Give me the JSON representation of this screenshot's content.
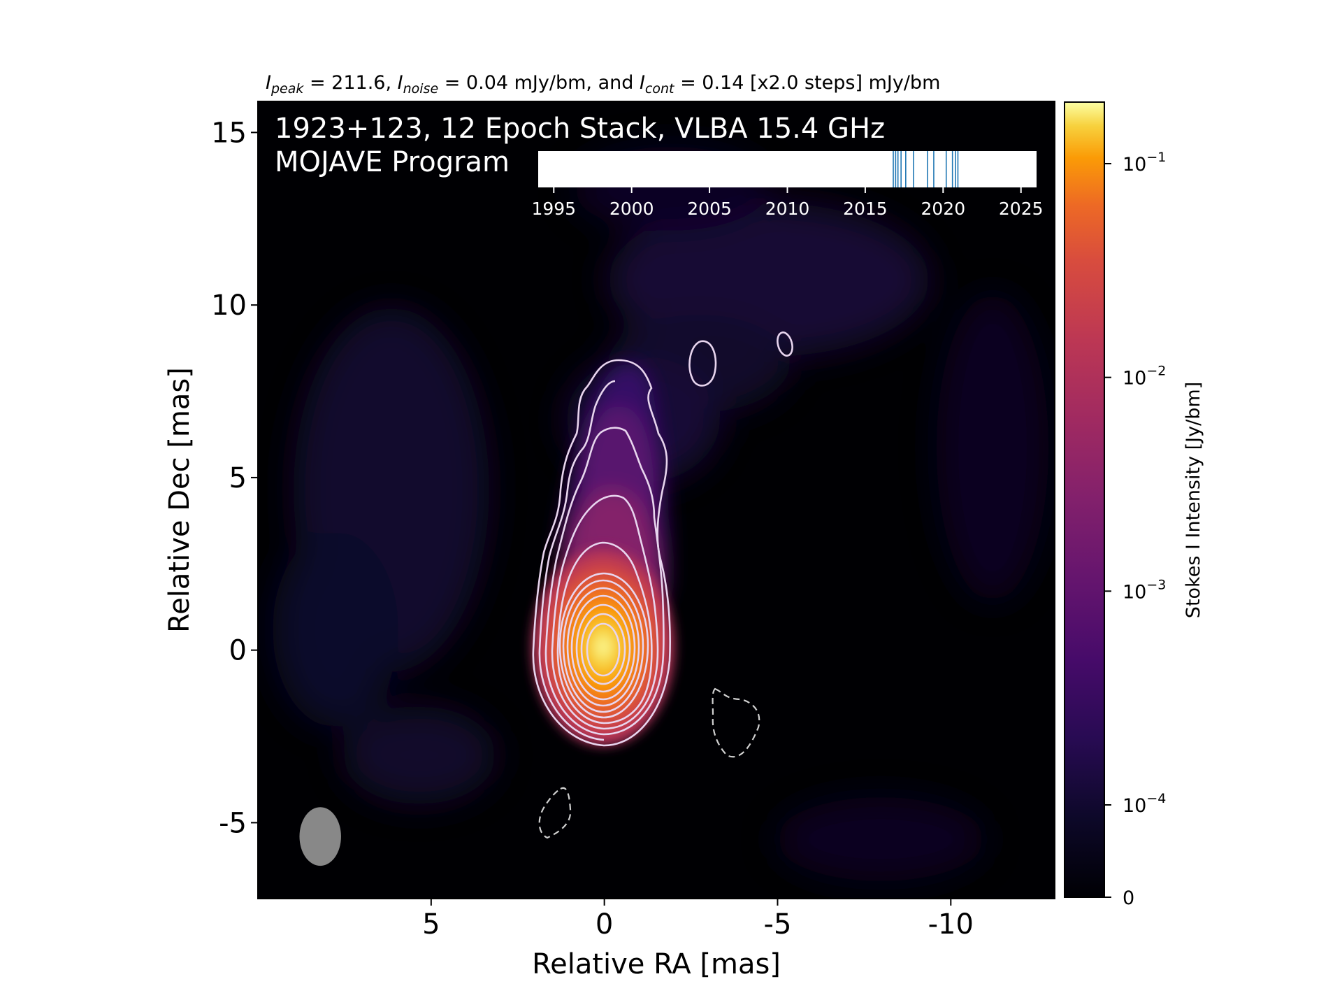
{
  "header": {
    "peak_sym": "I",
    "peak_sub": "peak",
    "peak_text": " = 211.6, ",
    "noise_sym": "I",
    "noise_sub": "noise",
    "noise_text": " = 0.04 mJy/bm, and ",
    "cont_sym": "I",
    "cont_sub": "cont",
    "cont_text": " = 0.14 [x2.0 steps] mJy/bm"
  },
  "overlay": {
    "line1": "1923+123, 12 Epoch Stack, VLBA 15.4 GHz",
    "line2": "MOJAVE Program"
  },
  "chart_data": {
    "type": "heatmap",
    "xlabel": "Relative RA [mas]",
    "ylabel": "Relative Dec [mas]",
    "xlim": [
      10,
      -13
    ],
    "ylim": [
      -7.2,
      15.9
    ],
    "xticks": [
      5,
      0,
      -5,
      -10
    ],
    "xtick_labels": [
      "5",
      "0",
      "-5",
      "-10"
    ],
    "yticks": [
      15,
      10,
      5,
      0,
      -5
    ],
    "ytick_labels": [
      "15",
      "10",
      "5",
      "0",
      "-5"
    ],
    "colormap": "inferno",
    "colorbar": {
      "label": "Stokes I Intensity [Jy/bm]",
      "scale": "log",
      "ticks": [
        {
          "value": 0.1,
          "base": "10",
          "exp": "−1"
        },
        {
          "value": 0.01,
          "base": "10",
          "exp": "−2"
        },
        {
          "value": 0.001,
          "base": "10",
          "exp": "−3"
        },
        {
          "value": 0.0001,
          "base": "10",
          "exp": "−4"
        },
        {
          "value": 0,
          "base": "0",
          "exp": ""
        }
      ]
    },
    "peak_mJy_per_beam": 211.6,
    "noise_mJy_per_beam": 0.04,
    "lowest_contour_mJy_per_beam": 0.14,
    "contour_step_factor": 2.0,
    "beam": {
      "center_ra": 8.2,
      "center_dec": -5.4,
      "ra_width": 1.2,
      "dec_height": 1.7,
      "color": "#888888"
    },
    "epoch_timeline": {
      "xlim": [
        1994,
        2026
      ],
      "ticks": [
        "1995",
        "2000",
        "2005",
        "2010",
        "2015",
        "2020",
        "2025"
      ],
      "epochs": [
        2016.8,
        2016.95,
        2017.1,
        2017.3,
        2017.6,
        2018.1,
        2019.0,
        2019.4,
        2020.2,
        2020.6,
        2020.8,
        2020.95
      ],
      "epoch_color": "#1f77b4"
    },
    "contour_color": "#e8d5ee",
    "negative_contour_color": "#d0d0d0"
  }
}
